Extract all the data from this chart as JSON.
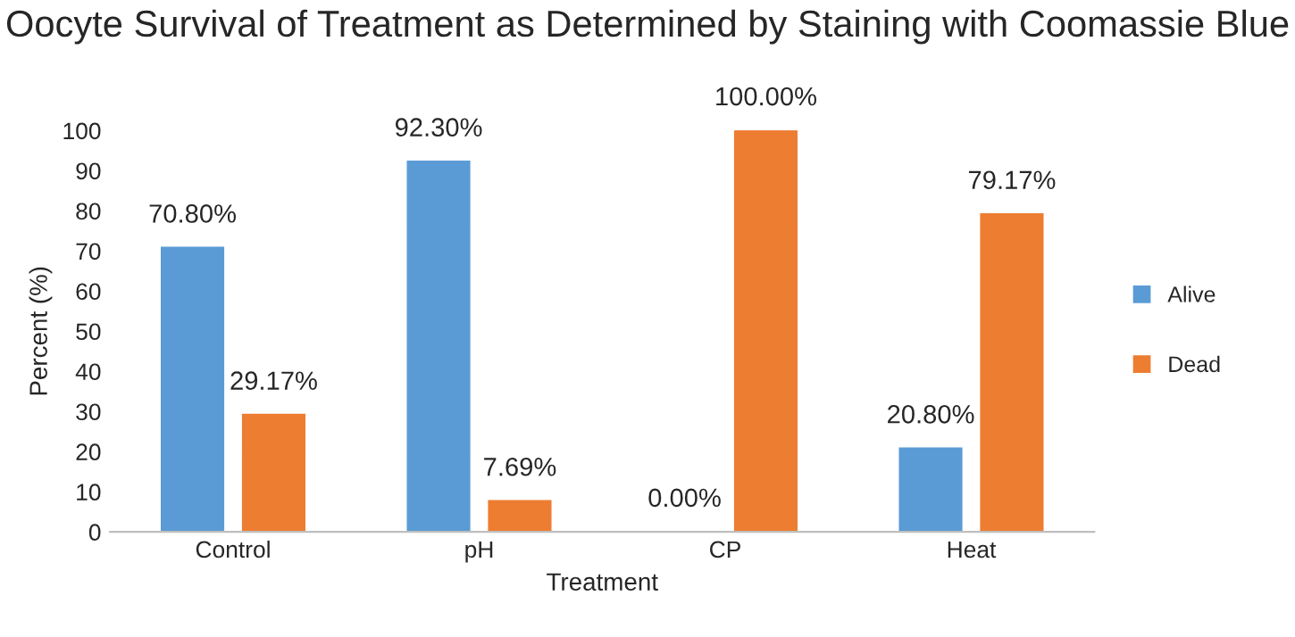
{
  "chart_data": {
    "type": "bar",
    "title": "Oocyte Survival of Treatment as Determined by Staining with Coomassie Blue",
    "xlabel": "Treatment",
    "ylabel": "Percent (%)",
    "categories": [
      "Control",
      "pH",
      "CP",
      "Heat"
    ],
    "series": [
      {
        "name": "Alive",
        "color": "#5b9bd5",
        "values": [
          70.8,
          92.3,
          0,
          20.8
        ],
        "value_labels": [
          "70.80%",
          "92.30%",
          "0.00%",
          "20.80%"
        ]
      },
      {
        "name": "Dead",
        "color": "#ed7d31",
        "values": [
          29.17,
          7.69,
          100,
          79.17
        ],
        "value_labels": [
          "29.17%",
          "7.69%",
          "100.00%",
          "79.17%"
        ]
      }
    ],
    "ylim": [
      0,
      100
    ],
    "yticks": [
      0,
      10,
      20,
      30,
      40,
      50,
      60,
      70,
      80,
      90,
      100
    ],
    "grid": false,
    "legend": "right"
  }
}
